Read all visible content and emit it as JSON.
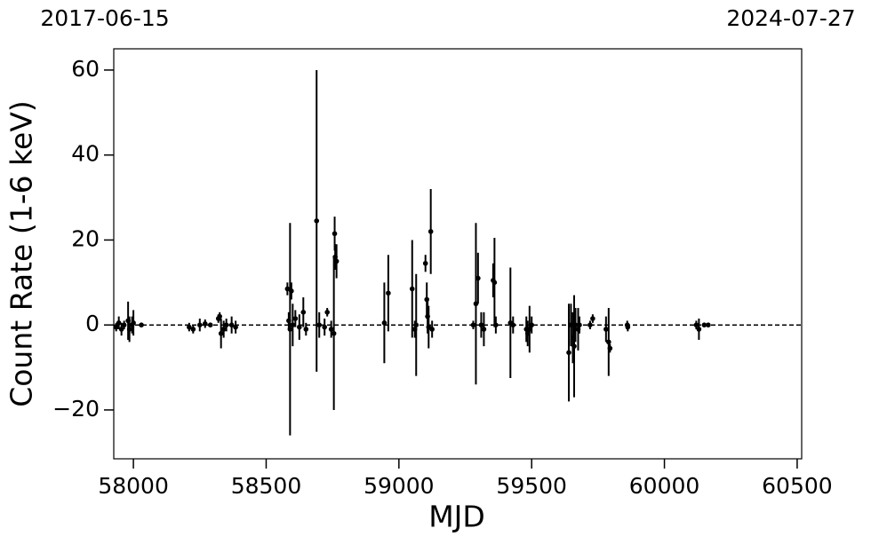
{
  "chart_data": {
    "type": "errorbar",
    "x_label": "MJD",
    "y_label": "Count Rate (1-6 keV)",
    "x2_labels": [
      "2017-06-15",
      "2024-07-27"
    ],
    "xlim": [
      57926,
      60517
    ],
    "ylim": [
      -31.5,
      65
    ],
    "xticks": [
      58000,
      58500,
      59000,
      59500,
      60000,
      60500
    ],
    "yticks": [
      {
        "value": -20,
        "label": "−20"
      },
      0,
      20,
      40,
      60
    ],
    "hline": 0,
    "color": "#000000",
    "series": [
      {
        "x": [
          57935,
          57945,
          57955,
          57965,
          57980,
          57985,
          57995,
          58000,
          58030,
          58210,
          58225,
          58250,
          58270,
          58290,
          58320,
          58325,
          58330,
          58340,
          58350,
          58370,
          58385,
          58580,
          58585,
          58590,
          58595,
          58600,
          58610,
          58625,
          58640,
          58650,
          58690,
          58700,
          58720,
          58730,
          58745,
          58755,
          58758,
          58760,
          58765,
          58945,
          58960,
          59050,
          59060,
          59065,
          59100,
          59105,
          59108,
          59112,
          59120,
          59125,
          59280,
          59290,
          59298,
          59310,
          59320,
          59355,
          59360,
          59365,
          59420,
          59430,
          59480,
          59485,
          59492,
          59500,
          59640,
          59648,
          59655,
          59660,
          59665,
          59675,
          59680,
          59720,
          59730,
          59780,
          59790,
          59795,
          59860,
          59862,
          60120,
          60130,
          60150,
          60165
        ],
        "values": [
          -0.5,
          0.5,
          -1,
          0,
          1,
          -1,
          0,
          0.5,
          0,
          -0.5,
          -1,
          0,
          0.3,
          0,
          1.5,
          2,
          -2,
          -1,
          0,
          0,
          -0.5,
          8.5,
          1,
          -1,
          8,
          0,
          1.5,
          -0.5,
          3,
          -1,
          24.5,
          0,
          -0.5,
          3,
          -1,
          -2,
          21.5,
          16,
          15,
          0.5,
          7.5,
          8.5,
          -1,
          0,
          14.5,
          6,
          2,
          -0.5,
          22,
          -1,
          0,
          5,
          11,
          0,
          -1,
          10.5,
          10,
          0,
          0.5,
          0,
          -1,
          -2,
          -1,
          0,
          -6.5,
          0,
          -3,
          -5,
          0,
          -1,
          0,
          0,
          1.5,
          -1,
          -4,
          -5.5,
          0,
          -0.5,
          0,
          -1,
          0,
          0
        ],
        "errors": [
          1,
          1.5,
          1.5,
          1,
          4.5,
          3,
          2,
          3,
          0.5,
          1,
          1,
          1.5,
          1,
          0.5,
          1,
          1,
          3.5,
          2,
          1.5,
          2,
          1.5,
          1.5,
          2,
          25,
          2,
          5,
          2,
          3,
          3.5,
          1.5,
          35.5,
          3,
          2,
          1,
          2,
          18,
          4,
          3,
          4,
          9.5,
          9,
          11.5,
          2,
          12,
          2,
          4,
          4,
          5,
          10,
          2,
          1,
          19,
          6,
          3,
          4,
          4,
          10.5,
          2,
          13,
          2,
          3,
          3,
          5.5,
          2,
          11.5,
          5,
          6,
          12,
          4,
          5,
          2,
          1,
          1,
          3,
          8,
          1,
          1,
          1,
          1,
          2.5,
          0.5,
          0.5
        ]
      }
    ]
  }
}
